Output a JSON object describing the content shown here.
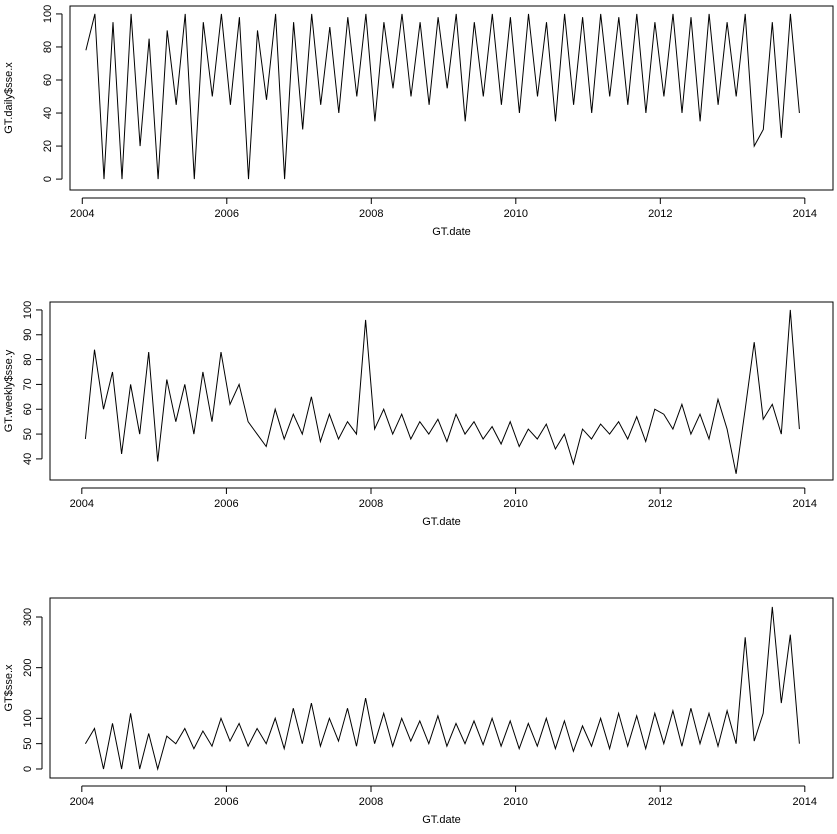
{
  "chart_data": [
    {
      "type": "line",
      "xlabel": "GT.date",
      "ylabel": "GT.daily$sse.x",
      "color": "#000000",
      "xlim": [
        2003.83,
        2014.39
      ],
      "xticks": [
        2004,
        2006,
        2008,
        2010,
        2012,
        2014
      ],
      "ylim": [
        -6.6,
        104.8
      ],
      "yticks": [
        0,
        20,
        40,
        60,
        80,
        100
      ],
      "x": [
        2004.05,
        2004.175,
        2004.3,
        2004.425,
        2004.55,
        2004.675,
        2004.8,
        2004.925,
        2005.05,
        2005.175,
        2005.3,
        2005.425,
        2005.55,
        2005.675,
        2005.8,
        2005.925,
        2006.05,
        2006.175,
        2006.3,
        2006.425,
        2006.55,
        2006.675,
        2006.8,
        2006.925,
        2007.05,
        2007.175,
        2007.3,
        2007.425,
        2007.55,
        2007.675,
        2007.8,
        2007.925,
        2008.05,
        2008.175,
        2008.3,
        2008.425,
        2008.55,
        2008.675,
        2008.8,
        2008.925,
        2009.05,
        2009.175,
        2009.3,
        2009.425,
        2009.55,
        2009.675,
        2009.8,
        2009.925,
        2010.05,
        2010.175,
        2010.3,
        2010.425,
        2010.55,
        2010.675,
        2010.8,
        2010.925,
        2011.05,
        2011.175,
        2011.3,
        2011.425,
        2011.55,
        2011.675,
        2011.8,
        2011.925,
        2012.05,
        2012.175,
        2012.3,
        2012.425,
        2012.55,
        2012.675,
        2012.8,
        2012.925,
        2013.05,
        2013.175,
        2013.3,
        2013.425,
        2013.55,
        2013.675,
        2013.8,
        2013.925
      ],
      "values": [
        78,
        100,
        0,
        95,
        0,
        100,
        20,
        85,
        0,
        90,
        45,
        100,
        0,
        95,
        50,
        100,
        45,
        98,
        0,
        90,
        48,
        100,
        0,
        95,
        30,
        100,
        45,
        92,
        40,
        98,
        50,
        100,
        35,
        95,
        55,
        100,
        50,
        95,
        45,
        98,
        55,
        100,
        35,
        95,
        50,
        100,
        45,
        98,
        40,
        100,
        50,
        95,
        35,
        100,
        45,
        98,
        40,
        100,
        50,
        98,
        45,
        100,
        40,
        95,
        50,
        100,
        40,
        98,
        35,
        100,
        45,
        95,
        50,
        100,
        20,
        30,
        95,
        25,
        100,
        40
      ]
    },
    {
      "type": "line",
      "xlabel": "GT.date",
      "ylabel": "GT.weekly$sse.y",
      "color": "#000000",
      "xlim": [
        2003.56,
        2014.39
      ],
      "xticks": [
        2004,
        2006,
        2008,
        2010,
        2012,
        2014
      ],
      "ylim": [
        31.5,
        103.2
      ],
      "yticks": [
        40,
        50,
        60,
        70,
        80,
        90,
        100
      ],
      "x": [
        2004.05,
        2004.175,
        2004.3,
        2004.425,
        2004.55,
        2004.675,
        2004.8,
        2004.925,
        2005.05,
        2005.175,
        2005.3,
        2005.425,
        2005.55,
        2005.675,
        2005.8,
        2005.925,
        2006.05,
        2006.175,
        2006.3,
        2006.425,
        2006.55,
        2006.675,
        2006.8,
        2006.925,
        2007.05,
        2007.175,
        2007.3,
        2007.425,
        2007.55,
        2007.675,
        2007.8,
        2007.925,
        2008.05,
        2008.175,
        2008.3,
        2008.425,
        2008.55,
        2008.675,
        2008.8,
        2008.925,
        2009.05,
        2009.175,
        2009.3,
        2009.425,
        2009.55,
        2009.675,
        2009.8,
        2009.925,
        2010.05,
        2010.175,
        2010.3,
        2010.425,
        2010.55,
        2010.675,
        2010.8,
        2010.925,
        2011.05,
        2011.175,
        2011.3,
        2011.425,
        2011.55,
        2011.675,
        2011.8,
        2011.925,
        2012.05,
        2012.175,
        2012.3,
        2012.425,
        2012.55,
        2012.675,
        2012.8,
        2012.925,
        2013.05,
        2013.175,
        2013.3,
        2013.425,
        2013.55,
        2013.675,
        2013.8,
        2013.925
      ],
      "values": [
        48,
        84,
        60,
        75,
        42,
        70,
        50,
        83,
        39,
        72,
        55,
        70,
        50,
        75,
        55,
        83,
        62,
        70,
        55,
        50,
        45,
        60,
        48,
        58,
        50,
        65,
        47,
        58,
        48,
        55,
        50,
        96,
        52,
        60,
        50,
        58,
        48,
        55,
        50,
        56,
        47,
        58,
        50,
        55,
        48,
        53,
        46,
        55,
        45,
        52,
        48,
        54,
        44,
        50,
        38,
        52,
        48,
        54,
        50,
        55,
        48,
        57,
        47,
        60,
        58,
        52,
        62,
        50,
        58,
        48,
        64,
        52,
        34,
        60,
        87,
        56,
        62,
        50,
        100,
        52
      ]
    },
    {
      "type": "line",
      "xlabel": "GT.date",
      "ylabel": "GT$sse.x",
      "color": "#000000",
      "xlim": [
        2003.56,
        2014.39
      ],
      "xticks": [
        2004,
        2006,
        2008,
        2010,
        2012,
        2014
      ],
      "ylim": [
        -17.8,
        337.5
      ],
      "yticks": [
        0,
        50,
        100,
        200,
        300
      ],
      "x": [
        2004.05,
        2004.175,
        2004.3,
        2004.425,
        2004.55,
        2004.675,
        2004.8,
        2004.925,
        2005.05,
        2005.175,
        2005.3,
        2005.425,
        2005.55,
        2005.675,
        2005.8,
        2005.925,
        2006.05,
        2006.175,
        2006.3,
        2006.425,
        2006.55,
        2006.675,
        2006.8,
        2006.925,
        2007.05,
        2007.175,
        2007.3,
        2007.425,
        2007.55,
        2007.675,
        2007.8,
        2007.925,
        2008.05,
        2008.175,
        2008.3,
        2008.425,
        2008.55,
        2008.675,
        2008.8,
        2008.925,
        2009.05,
        2009.175,
        2009.3,
        2009.425,
        2009.55,
        2009.675,
        2009.8,
        2009.925,
        2010.05,
        2010.175,
        2010.3,
        2010.425,
        2010.55,
        2010.675,
        2010.8,
        2010.925,
        2011.05,
        2011.175,
        2011.3,
        2011.425,
        2011.55,
        2011.675,
        2011.8,
        2011.925,
        2012.05,
        2012.175,
        2012.3,
        2012.425,
        2012.55,
        2012.675,
        2012.8,
        2012.925,
        2013.05,
        2013.175,
        2013.3,
        2013.425,
        2013.55,
        2013.675,
        2013.8,
        2013.925
      ],
      "values": [
        50,
        80,
        0,
        90,
        0,
        110,
        0,
        70,
        0,
        65,
        50,
        80,
        40,
        75,
        45,
        100,
        55,
        90,
        45,
        80,
        50,
        100,
        40,
        120,
        50,
        130,
        45,
        100,
        55,
        120,
        45,
        140,
        50,
        110,
        45,
        100,
        55,
        95,
        50,
        105,
        45,
        90,
        50,
        95,
        48,
        100,
        45,
        95,
        40,
        90,
        45,
        100,
        40,
        95,
        35,
        85,
        45,
        100,
        40,
        110,
        45,
        105,
        40,
        110,
        50,
        115,
        45,
        120,
        50,
        110,
        45,
        115,
        50,
        260,
        55,
        110,
        320,
        130,
        265,
        50
      ]
    }
  ]
}
